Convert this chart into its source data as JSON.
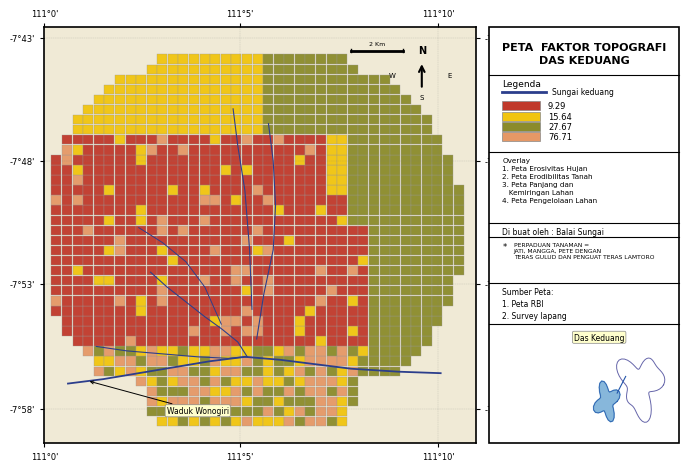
{
  "title": "PETA  FAKTOR TOPOGRAFI\nDAS KEDUANG",
  "map_xlim": [
    111.0,
    111.183
  ],
  "map_ylim": [
    -7.99,
    -7.71
  ],
  "x_ticks": [
    111.0,
    111.083,
    111.167
  ],
  "x_tick_labels": [
    "111°0'",
    "111°5'",
    "111°10'"
  ],
  "y_ticks": [
    -7.967,
    -7.883,
    -7.8,
    -7.717
  ],
  "y_tick_labels": [
    "-7°58'",
    "-7°53'",
    "-7°48'",
    "-7°43'"
  ],
  "legend_colors": [
    "#C0392B",
    "#F1C40F",
    "#8B8B2B",
    "#E59866"
  ],
  "legend_labels": [
    "9.29",
    "15.64",
    "27.67",
    "76.71"
  ],
  "river_color": "#2C3E8C",
  "background_color": "#FFFFFF",
  "overlay_text": "Overlay\n1. Peta Erosivitas Hujan\n2. Peta Erodibilitas Tanah\n3. Peta Panjang dan\n   Kemiringan Lahan\n4. Peta Pengelolaan Lahan",
  "dibuat_text": "Di buat oleh : Balai Sungai",
  "perpaduan_text": "PERPADUAN TANAMAN =\nJATI, MANGGA, PETE DENGAN\nTERAS GULUD DAN PENGUAT TERAS LAMTORO",
  "sumber_text": "Sumber Peta:\n1. Peta RBI\n2. Survey lapang",
  "legenda_title": "Legenda",
  "sungai_label": "Sungai keduang",
  "waduk_label": "Waduk Wonogiri",
  "das_label": "Das Keduang"
}
